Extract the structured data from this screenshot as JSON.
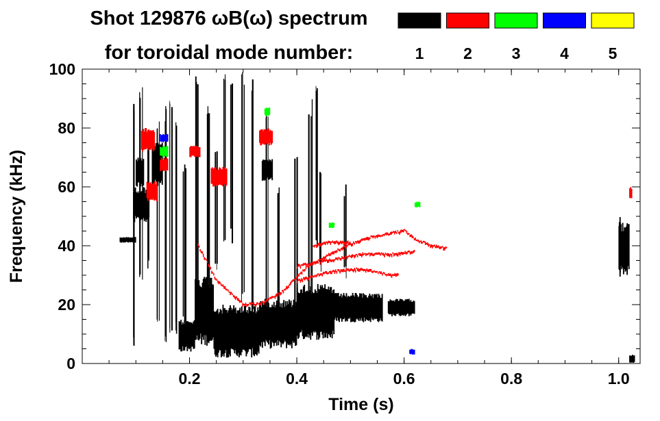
{
  "chart_data": {
    "type": "heatmap",
    "title_line1": "Shot 129876 ωB(ω) spectrum",
    "title_line2": "for toroidal mode number:",
    "xlabel": "Time (s)",
    "ylabel": "Frequency (kHz)",
    "xlim": [
      0.0,
      1.04
    ],
    "ylim": [
      0,
      100
    ],
    "x_ticks": [
      {
        "v": 0.2,
        "label": "0.2"
      },
      {
        "v": 0.4,
        "label": "0.4"
      },
      {
        "v": 0.6,
        "label": "0.6"
      },
      {
        "v": 0.8,
        "label": "0.8"
      },
      {
        "v": 1.0,
        "label": "1.0"
      }
    ],
    "y_ticks": [
      {
        "v": 0,
        "label": "0"
      },
      {
        "v": 20,
        "label": "20"
      },
      {
        "v": 40,
        "label": "40"
      },
      {
        "v": 60,
        "label": "60"
      },
      {
        "v": 80,
        "label": "80"
      },
      {
        "v": 100,
        "label": "100"
      }
    ],
    "x_minor_step": 0.05,
    "y_minor_step": 5,
    "legend": [
      {
        "label": "1",
        "color": "#000000"
      },
      {
        "label": "2",
        "color": "#ff0000"
      },
      {
        "label": "3",
        "color": "#00ff00"
      },
      {
        "label": "4",
        "color": "#0000ff"
      },
      {
        "label": "5",
        "color": "#ffff00"
      }
    ],
    "series": [
      {
        "name": "n=1",
        "color": "#000000",
        "blobs": [
          {
            "t": [
              0.07,
              0.1
            ],
            "f": [
              41,
              43
            ]
          },
          {
            "t": [
              0.095,
              0.125
            ],
            "f": [
              48,
              60
            ]
          },
          {
            "t": [
              0.1,
              0.115
            ],
            "f": [
              60,
              70
            ]
          },
          {
            "t": [
              0.13,
              0.15
            ],
            "f": [
              60,
              75
            ]
          },
          {
            "t": [
              0.18,
              0.21
            ],
            "f": [
              4,
              15
            ]
          },
          {
            "t": [
              0.21,
              0.245
            ],
            "f": [
              6,
              30
            ]
          },
          {
            "t": [
              0.245,
              0.33
            ],
            "f": [
              2,
              20
            ]
          },
          {
            "t": [
              0.33,
              0.4
            ],
            "f": [
              5,
              22
            ]
          },
          {
            "t": [
              0.4,
              0.47
            ],
            "f": [
              8,
              27
            ]
          },
          {
            "t": [
              0.47,
              0.56
            ],
            "f": [
              14,
              24
            ]
          },
          {
            "t": [
              0.57,
              0.62
            ],
            "f": [
              16,
              22
            ]
          },
          {
            "t": [
              0.335,
              0.355
            ],
            "f": [
              62,
              70
            ]
          },
          {
            "t": [
              1.0,
              1.02
            ],
            "f": [
              30,
              48
            ]
          },
          {
            "t": [
              1.02,
              1.03
            ],
            "f": [
              0,
              3
            ]
          }
        ],
        "streaks": [
          {
            "t": 0.095,
            "f": [
              5,
              90
            ]
          },
          {
            "t": 0.11,
            "f": [
              25,
              95
            ]
          },
          {
            "t": 0.125,
            "f": [
              30,
              80
            ]
          },
          {
            "t": 0.14,
            "f": [
              10,
              85
            ]
          },
          {
            "t": 0.155,
            "f": [
              5,
              88
            ]
          },
          {
            "t": 0.165,
            "f": [
              8,
              90
            ]
          },
          {
            "t": 0.175,
            "f": [
              10,
              85
            ]
          },
          {
            "t": 0.19,
            "f": [
              10,
              70
            ]
          },
          {
            "t": 0.215,
            "f": [
              15,
              99
            ]
          },
          {
            "t": 0.235,
            "f": [
              20,
              90
            ]
          },
          {
            "t": 0.25,
            "f": [
              30,
              75
            ]
          },
          {
            "t": 0.265,
            "f": [
              40,
              99
            ]
          },
          {
            "t": 0.28,
            "f": [
              40,
              98
            ]
          },
          {
            "t": 0.3,
            "f": [
              20,
              99
            ]
          },
          {
            "t": 0.32,
            "f": [
              15,
              98
            ]
          },
          {
            "t": 0.345,
            "f": [
              12,
              88
            ]
          },
          {
            "t": 0.365,
            "f": [
              15,
              60
            ]
          },
          {
            "t": 0.4,
            "f": [
              15,
              72
            ]
          },
          {
            "t": 0.425,
            "f": [
              18,
              90
            ]
          },
          {
            "t": 0.435,
            "f": [
              40,
              98
            ]
          },
          {
            "t": 0.445,
            "f": [
              30,
              70
            ]
          },
          {
            "t": 0.49,
            "f": [
              28,
              62
            ]
          },
          {
            "t": 1.005,
            "f": [
              28,
              50
            ]
          }
        ]
      },
      {
        "name": "n=2",
        "color": "#ff0000",
        "branches": [
          {
            "pts": [
              [
                0.215,
                40
              ],
              [
                0.25,
                28
              ],
              [
                0.3,
                20
              ],
              [
                0.33,
                20
              ],
              [
                0.37,
                24
              ],
              [
                0.42,
                33
              ],
              [
                0.47,
                38
              ],
              [
                0.52,
                42
              ],
              [
                0.57,
                44
              ],
              [
                0.6,
                45
              ],
              [
                0.62,
                42
              ],
              [
                0.65,
                40
              ],
              [
                0.68,
                39
              ]
            ]
          },
          {
            "pts": [
              [
                0.4,
                33
              ],
              [
                0.46,
                35
              ],
              [
                0.52,
                37
              ],
              [
                0.58,
                37
              ],
              [
                0.62,
                38
              ]
            ]
          },
          {
            "pts": [
              [
                0.4,
                28
              ],
              [
                0.46,
                31
              ],
              [
                0.52,
                32
              ],
              [
                0.57,
                30
              ],
              [
                0.59,
                30
              ]
            ]
          },
          {
            "pts": [
              [
                0.43,
                40
              ],
              [
                0.46,
                41
              ],
              [
                0.5,
                41
              ]
            ]
          }
        ],
        "blobs": [
          {
            "t": [
              0.11,
              0.135
            ],
            "f": [
              72,
              80
            ]
          },
          {
            "t": [
              0.12,
              0.14
            ],
            "f": [
              55,
              62
            ]
          },
          {
            "t": [
              0.145,
              0.16
            ],
            "f": [
              65,
              70
            ]
          },
          {
            "t": [
              0.2,
              0.22
            ],
            "f": [
              70,
              74
            ]
          },
          {
            "t": [
              0.24,
              0.27
            ],
            "f": [
              60,
              67
            ]
          },
          {
            "t": [
              0.33,
              0.355
            ],
            "f": [
              74,
              80
            ]
          },
          {
            "t": [
              1.02,
              1.025
            ],
            "f": [
              56,
              60
            ]
          }
        ]
      },
      {
        "name": "n=3",
        "color": "#00ff00",
        "blobs": [
          {
            "t": [
              0.145,
              0.16
            ],
            "f": [
              70,
              74
            ]
          },
          {
            "t": [
              0.34,
              0.35
            ],
            "f": [
              84,
              87
            ]
          },
          {
            "t": [
              0.62,
              0.63
            ],
            "f": [
              53,
              55
            ]
          },
          {
            "t": [
              0.46,
              0.47
            ],
            "f": [
              46,
              48
            ]
          }
        ]
      },
      {
        "name": "n=4",
        "color": "#0000ff",
        "blobs": [
          {
            "t": [
              0.145,
              0.16
            ],
            "f": [
              75,
              78
            ]
          },
          {
            "t": [
              0.61,
              0.62
            ],
            "f": [
              3,
              5
            ]
          }
        ]
      }
    ]
  }
}
